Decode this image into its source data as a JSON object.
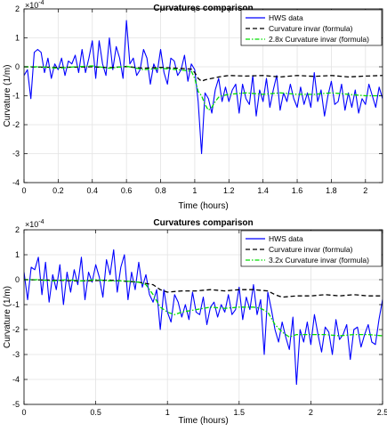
{
  "chart_data": [
    {
      "type": "line",
      "title": "Curvatures comparison",
      "xlabel": "Time (hours)",
      "ylabel": "Curvature (1/m)",
      "exponent_label": "×10",
      "exponent_power": "-4",
      "xlim": [
        0,
        2.1
      ],
      "ylim": [
        -4,
        2
      ],
      "xticks": [
        0,
        0.2,
        0.4,
        0.6,
        0.8,
        1,
        1.2,
        1.4,
        1.6,
        1.8,
        2
      ],
      "xtick_labels": [
        "0",
        "0.2",
        "0.4",
        "0.6",
        "0.8",
        "1",
        "1.2",
        "1.4",
        "1.6",
        "1.8",
        "2"
      ],
      "yticks": [
        -4,
        -3,
        -2,
        -1,
        0,
        1,
        2
      ],
      "ytick_labels": [
        "-4",
        "-3",
        "-2",
        "-1",
        "0",
        "1",
        "2"
      ],
      "grid": true,
      "legend_position": "top-right",
      "series": [
        {
          "name": "HWS data",
          "color": "#0000ff",
          "style": "solid",
          "x": [
            0,
            0.02,
            0.04,
            0.06,
            0.08,
            0.1,
            0.12,
            0.14,
            0.16,
            0.18,
            0.2,
            0.22,
            0.24,
            0.26,
            0.28,
            0.3,
            0.32,
            0.34,
            0.36,
            0.38,
            0.4,
            0.42,
            0.44,
            0.46,
            0.48,
            0.5,
            0.52,
            0.54,
            0.56,
            0.58,
            0.6,
            0.62,
            0.64,
            0.66,
            0.68,
            0.7,
            0.72,
            0.74,
            0.76,
            0.78,
            0.8,
            0.82,
            0.84,
            0.86,
            0.88,
            0.9,
            0.92,
            0.94,
            0.96,
            0.98,
            1.0,
            1.02,
            1.04,
            1.06,
            1.08,
            1.1,
            1.12,
            1.14,
            1.16,
            1.18,
            1.2,
            1.22,
            1.24,
            1.26,
            1.28,
            1.3,
            1.32,
            1.34,
            1.36,
            1.38,
            1.4,
            1.42,
            1.44,
            1.46,
            1.48,
            1.5,
            1.52,
            1.54,
            1.56,
            1.58,
            1.6,
            1.62,
            1.64,
            1.66,
            1.68,
            1.7,
            1.72,
            1.74,
            1.76,
            1.78,
            1.8,
            1.82,
            1.84,
            1.86,
            1.88,
            1.9,
            1.92,
            1.94,
            1.96,
            1.98,
            2.0,
            2.02,
            2.04,
            2.06,
            2.08,
            2.1
          ],
          "y": [
            -0.3,
            -0.1,
            -1.1,
            0.5,
            0.6,
            0.5,
            -0.2,
            0.3,
            -0.4,
            0.1,
            -0.1,
            0.3,
            -0.3,
            0.2,
            0.1,
            0.4,
            -0.2,
            0.6,
            -0.2,
            0.3,
            0.9,
            -0.4,
            0.9,
            0.1,
            -0.3,
            1.0,
            -0.1,
            0.7,
            0.3,
            -0.4,
            1.6,
            0.1,
            0.3,
            -0.3,
            -0.1,
            0.6,
            0.3,
            -0.6,
            0.1,
            -0.2,
            0.6,
            -0.2,
            -0.6,
            0.3,
            0.2,
            -0.3,
            -0.1,
            0.4,
            -0.5,
            0.1,
            -0.1,
            -1.2,
            -3.0,
            -0.9,
            -1.1,
            -1.6,
            -0.8,
            -0.4,
            -1.2,
            -0.7,
            -1.2,
            -0.8,
            -0.6,
            -1.6,
            -0.6,
            -1.1,
            -1.3,
            -0.3,
            -1.7,
            -0.8,
            -1.2,
            -0.4,
            -1.4,
            -0.8,
            -0.3,
            -1.5,
            -0.9,
            -1.2,
            -0.6,
            -1.1,
            -1.4,
            -0.7,
            -1.3,
            -0.9,
            -1.4,
            -0.2,
            -1.2,
            -0.8,
            -1.7,
            -1.0,
            -0.5,
            -1.3,
            -1.2,
            -0.6,
            -1.5,
            -0.9,
            -1.4,
            -0.8,
            -1.6,
            -1.1,
            -1.3,
            -0.6,
            -1.0,
            -1.4,
            -0.7,
            -1.1
          ]
        },
        {
          "name": "Curvature invar (formula)",
          "color": "#000000",
          "style": "dashed",
          "x": [
            0,
            0.2,
            0.4,
            0.5,
            0.6,
            0.7,
            0.8,
            0.9,
            0.98,
            1.0,
            1.02,
            1.04,
            1.06,
            1.1,
            1.14,
            1.2,
            1.3,
            1.4,
            1.5,
            1.6,
            1.7,
            1.8,
            1.9,
            2.0,
            2.1
          ],
          "y": [
            0.0,
            -0.02,
            0.0,
            -0.03,
            0.01,
            -0.05,
            -0.02,
            -0.05,
            -0.08,
            -0.2,
            -0.4,
            -0.5,
            -0.45,
            -0.4,
            -0.35,
            -0.3,
            -0.32,
            -0.3,
            -0.35,
            -0.3,
            -0.33,
            -0.3,
            -0.35,
            -0.32,
            -0.3
          ]
        },
        {
          "name": "2.8x Curvature invar (formula)",
          "color": "#00dd00",
          "style": "dashdot",
          "x": [
            0,
            0.1,
            0.2,
            0.3,
            0.4,
            0.5,
            0.6,
            0.7,
            0.8,
            0.9,
            0.98,
            1.0,
            1.02,
            1.04,
            1.06,
            1.08,
            1.1,
            1.12,
            1.14,
            1.16,
            1.2,
            1.3,
            1.4,
            1.5,
            1.6,
            1.7,
            1.8,
            1.9,
            2.0,
            2.1
          ],
          "y": [
            0.0,
            0.0,
            -0.05,
            0.0,
            0.03,
            -0.05,
            0.02,
            -0.1,
            -0.05,
            -0.1,
            -0.15,
            -0.4,
            -0.85,
            -1.0,
            -1.3,
            -1.5,
            -1.4,
            -1.2,
            -1.05,
            -1.0,
            -0.95,
            -0.9,
            -0.95,
            -0.9,
            -0.95,
            -0.95,
            -0.9,
            -0.95,
            -1.0,
            -1.0
          ]
        }
      ]
    },
    {
      "type": "line",
      "title": "Curvatures comparison",
      "xlabel": "Time (hours)",
      "ylabel": "Curvature (1/m)",
      "exponent_label": "×10",
      "exponent_power": "-4",
      "xlim": [
        0,
        2.5
      ],
      "ylim": [
        -5,
        2
      ],
      "xticks": [
        0,
        0.5,
        1,
        1.5,
        2,
        2.5
      ],
      "xtick_labels": [
        "0",
        "0.5",
        "1",
        "1.5",
        "2",
        "2.5"
      ],
      "yticks": [
        -5,
        -4,
        -3,
        -2,
        -1,
        0,
        1,
        2
      ],
      "ytick_labels": [
        "-5",
        "-4",
        "-3",
        "-2",
        "-1",
        "0",
        "1",
        "2"
      ],
      "grid": true,
      "legend_position": "top-right",
      "series": [
        {
          "name": "HWS data",
          "color": "#0000ff",
          "style": "solid",
          "x": [
            0,
            0.025,
            0.05,
            0.075,
            0.1,
            0.125,
            0.15,
            0.175,
            0.2,
            0.225,
            0.25,
            0.275,
            0.3,
            0.325,
            0.35,
            0.375,
            0.4,
            0.425,
            0.45,
            0.475,
            0.5,
            0.525,
            0.55,
            0.575,
            0.6,
            0.625,
            0.65,
            0.675,
            0.7,
            0.725,
            0.75,
            0.775,
            0.8,
            0.825,
            0.85,
            0.875,
            0.9,
            0.925,
            0.95,
            0.975,
            1.0,
            1.025,
            1.05,
            1.075,
            1.1,
            1.125,
            1.15,
            1.175,
            1.2,
            1.225,
            1.25,
            1.275,
            1.3,
            1.325,
            1.35,
            1.375,
            1.4,
            1.425,
            1.45,
            1.475,
            1.5,
            1.525,
            1.55,
            1.575,
            1.6,
            1.625,
            1.65,
            1.675,
            1.7,
            1.725,
            1.75,
            1.775,
            1.8,
            1.825,
            1.85,
            1.875,
            1.9,
            1.925,
            1.95,
            1.975,
            2.0,
            2.025,
            2.05,
            2.075,
            2.1,
            2.125,
            2.15,
            2.175,
            2.2,
            2.225,
            2.25,
            2.275,
            2.3,
            2.325,
            2.35,
            2.375,
            2.4,
            2.425,
            2.45,
            2.475,
            2.5
          ],
          "y": [
            0.3,
            -0.8,
            0.5,
            0.4,
            0.9,
            -0.6,
            0.7,
            -0.9,
            0.2,
            -0.4,
            0.6,
            -1.0,
            0.3,
            -0.5,
            0.4,
            -0.2,
            0.9,
            -0.8,
            0.3,
            -0.1,
            0.6,
            0.1,
            -0.7,
            0.8,
            0.2,
            1.2,
            -0.5,
            0.5,
            1.0,
            -0.8,
            0.3,
            -0.4,
            0.7,
            -0.3,
            0.2,
            -0.6,
            -0.9,
            -0.4,
            -2.0,
            -0.4,
            -1.3,
            -1.7,
            -0.6,
            -0.9,
            -1.5,
            -1.0,
            -1.6,
            -0.5,
            -1.3,
            -1.4,
            -0.7,
            -1.8,
            -1.1,
            -0.9,
            -1.5,
            -1.0,
            -1.3,
            -0.6,
            -1.4,
            -1.2,
            -0.3,
            -1.6,
            -0.7,
            -1.2,
            -0.2,
            -1.4,
            -0.8,
            -3.0,
            -0.5,
            -1.2,
            -2.0,
            -2.5,
            -1.7,
            -2.3,
            -2.8,
            -1.5,
            -4.2,
            -2.0,
            -2.5,
            -1.7,
            -2.6,
            -1.4,
            -2.2,
            -2.9,
            -1.9,
            -2.1,
            -3.0,
            -1.6,
            -2.4,
            -2.2,
            -1.8,
            -3.2,
            -2.0,
            -1.9,
            -2.7,
            -2.2,
            -1.8,
            -2.5,
            -2.6,
            -1.6,
            -0.8
          ]
        },
        {
          "name": "Curvature invar (formula)",
          "color": "#000000",
          "style": "dashed",
          "x": [
            0,
            0.2,
            0.4,
            0.6,
            0.8,
            0.9,
            0.95,
            1.0,
            1.1,
            1.2,
            1.3,
            1.4,
            1.5,
            1.6,
            1.7,
            1.75,
            1.8,
            1.9,
            2.0,
            2.1,
            2.2,
            2.3,
            2.4,
            2.5
          ],
          "y": [
            0.0,
            -0.02,
            -0.05,
            -0.02,
            -0.1,
            -0.2,
            -0.4,
            -0.5,
            -0.45,
            -0.45,
            -0.4,
            -0.45,
            -0.4,
            -0.4,
            -0.45,
            -0.6,
            -0.7,
            -0.65,
            -0.65,
            -0.6,
            -0.65,
            -0.6,
            -0.65,
            -0.65
          ]
        },
        {
          "name": "3.2x Curvature invar (formula)",
          "color": "#00dd00",
          "style": "dashdot",
          "x": [
            0,
            0.1,
            0.2,
            0.3,
            0.4,
            0.5,
            0.6,
            0.7,
            0.8,
            0.85,
            0.9,
            0.95,
            1.0,
            1.05,
            1.1,
            1.2,
            1.3,
            1.4,
            1.5,
            1.6,
            1.65,
            1.7,
            1.75,
            1.8,
            1.85,
            1.9,
            2.0,
            2.1,
            2.2,
            2.3,
            2.4,
            2.5
          ],
          "y": [
            0.0,
            0.0,
            -0.05,
            0.0,
            -0.05,
            0.0,
            -0.05,
            -0.05,
            -0.1,
            -0.2,
            -0.6,
            -1.1,
            -1.3,
            -1.4,
            -1.3,
            -1.2,
            -1.1,
            -1.15,
            -1.1,
            -1.1,
            -1.15,
            -1.3,
            -1.8,
            -2.1,
            -2.3,
            -2.2,
            -2.2,
            -2.2,
            -2.25,
            -2.2,
            -2.2,
            -2.25
          ]
        }
      ]
    }
  ]
}
